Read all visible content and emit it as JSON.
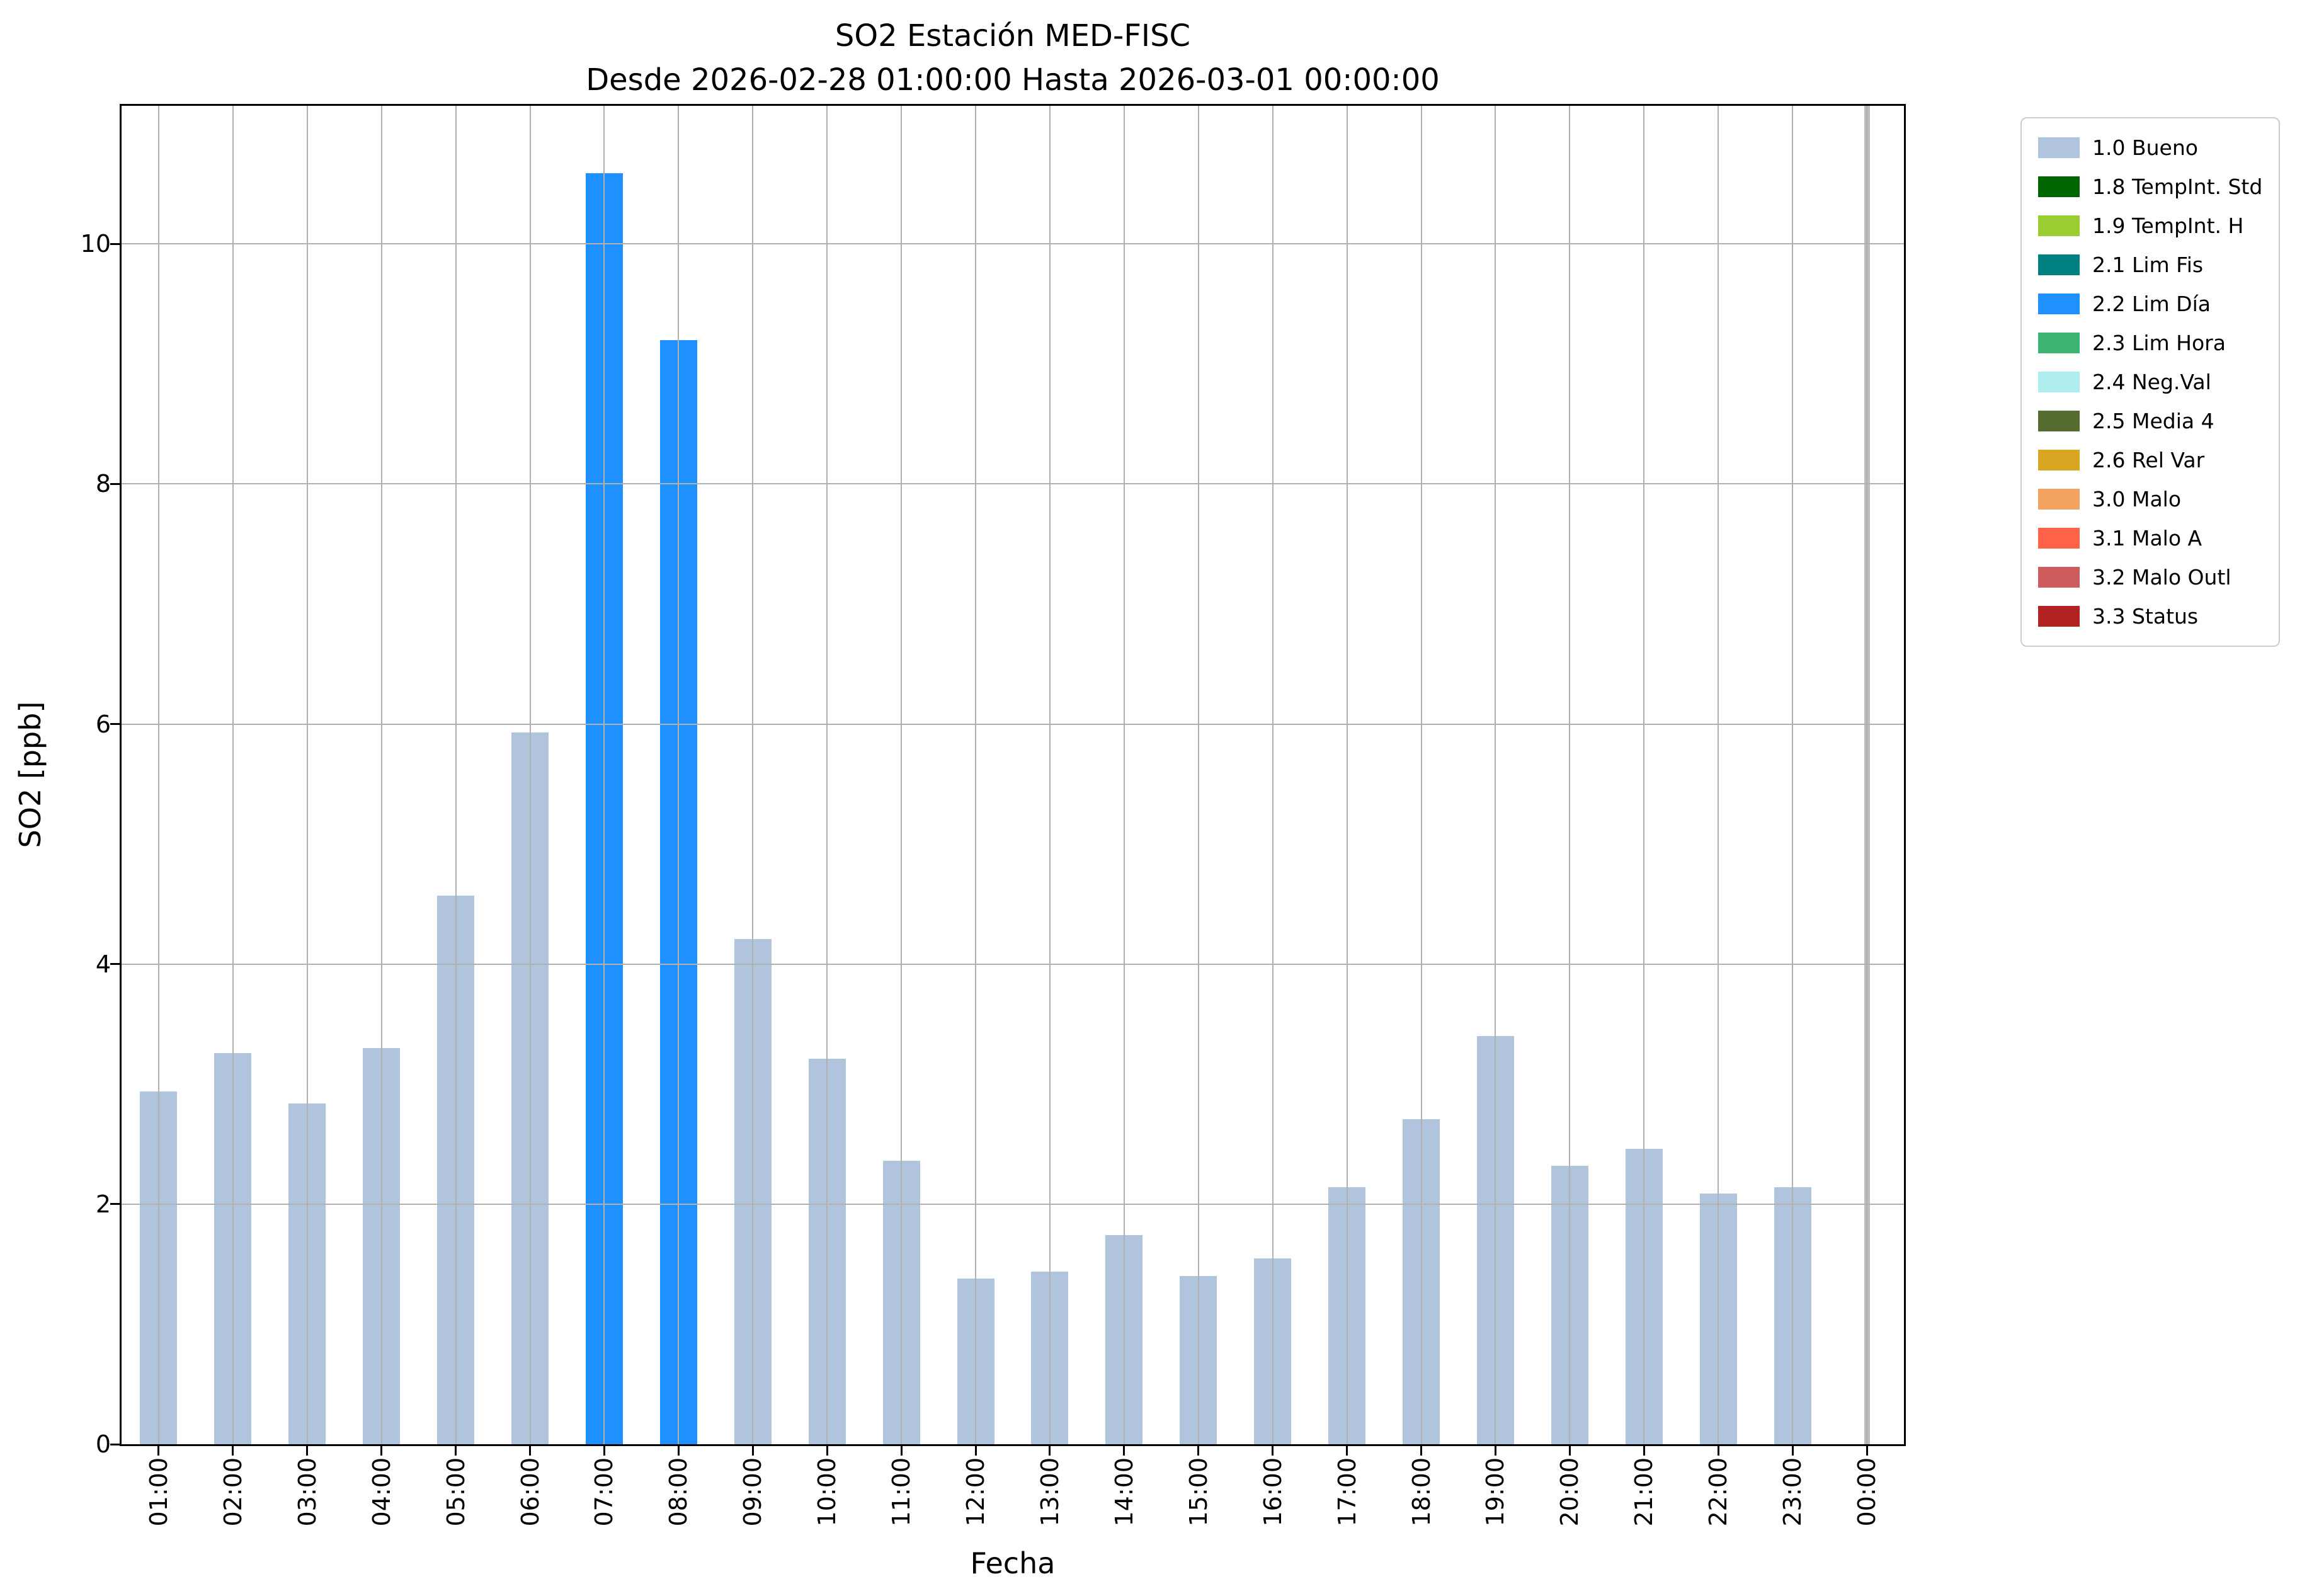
{
  "chart_data": {
    "type": "bar",
    "title": "SO2 Estación MED-FISC",
    "subtitle": "Desde 2026-02-28 01:00:00 Hasta 2026-03-01 00:00:00",
    "xlabel": "Fecha",
    "ylabel": "SO2 [ppb]",
    "ylim": [
      0,
      11.15
    ],
    "yticks": [
      0,
      2,
      4,
      6,
      8,
      10
    ],
    "grid": true,
    "grid_color": "#b0b0b0",
    "legend_position": "upper-right-outside",
    "categories": [
      "01:00",
      "02:00",
      "03:00",
      "04:00",
      "05:00",
      "06:00",
      "07:00",
      "08:00",
      "09:00",
      "10:00",
      "11:00",
      "12:00",
      "13:00",
      "14:00",
      "15:00",
      "16:00",
      "17:00",
      "18:00",
      "19:00",
      "20:00",
      "21:00",
      "22:00",
      "23:00",
      "00:00"
    ],
    "values": [
      2.94,
      3.26,
      2.84,
      3.3,
      4.57,
      5.93,
      10.59,
      9.2,
      4.21,
      3.21,
      2.36,
      1.38,
      1.44,
      1.74,
      1.4,
      1.55,
      2.14,
      2.71,
      3.4,
      2.32,
      2.46,
      2.09,
      2.14,
      0
    ],
    "statuses": [
      "1.0 Bueno",
      "1.0 Bueno",
      "1.0 Bueno",
      "1.0 Bueno",
      "1.0 Bueno",
      "1.0 Bueno",
      "2.2 Lim Día",
      "2.2 Lim Día",
      "1.0 Bueno",
      "1.0 Bueno",
      "1.0 Bueno",
      "1.0 Bueno",
      "1.0 Bueno",
      "1.0 Bueno",
      "1.0 Bueno",
      "1.0 Bueno",
      "1.0 Bueno",
      "1.0 Bueno",
      "1.0 Bueno",
      "1.0 Bueno",
      "1.0 Bueno",
      "1.0 Bueno",
      "1.0 Bueno",
      null
    ],
    "marker_line": {
      "category": "00:00",
      "color": "#bdbdbd"
    },
    "legend": [
      {
        "label": "1.0 Bueno",
        "color": "#B0C4DE"
      },
      {
        "label": "1.8 TempInt. Std",
        "color": "#006400"
      },
      {
        "label": "1.9 TempInt. H",
        "color": "#9ACD32"
      },
      {
        "label": "2.1 Lim Fis",
        "color": "#008080"
      },
      {
        "label": "2.2 Lim Día",
        "color": "#1E90FF"
      },
      {
        "label": "2.3 Lim Hora",
        "color": "#3CB371"
      },
      {
        "label": "2.4 Neg.Val",
        "color": "#AFEEEE"
      },
      {
        "label": "2.5 Media 4",
        "color": "#556B2F"
      },
      {
        "label": "2.6 Rel Var",
        "color": "#DAA520"
      },
      {
        "label": "3.0 Malo",
        "color": "#F4A460"
      },
      {
        "label": "3.1 Malo A",
        "color": "#FF6347"
      },
      {
        "label": "3.2 Malo Outl",
        "color": "#CD5C5C"
      },
      {
        "label": "3.3 Status",
        "color": "#B22222"
      }
    ]
  }
}
